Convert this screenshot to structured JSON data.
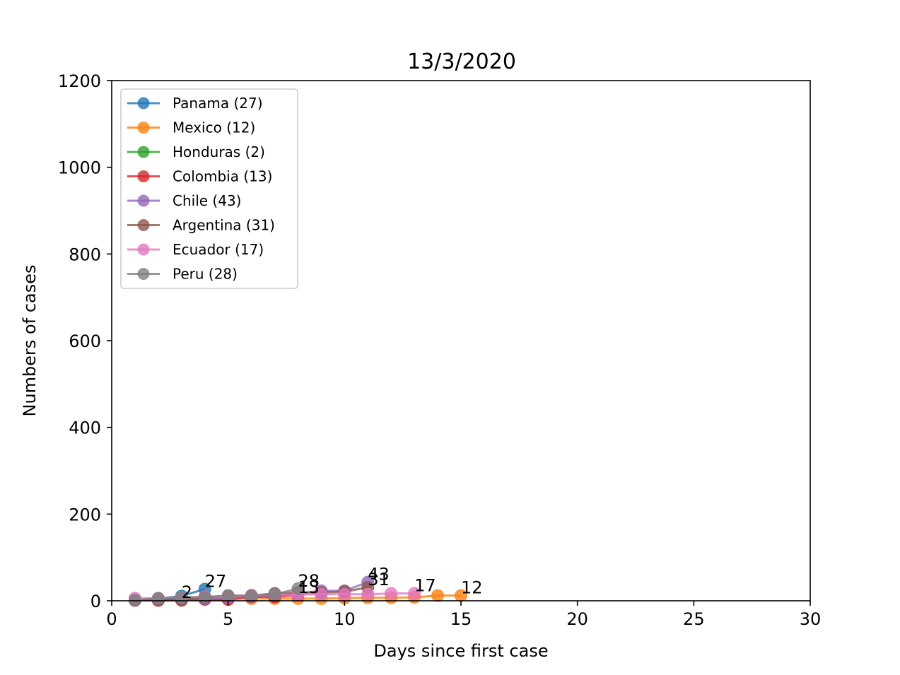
{
  "chart_data": {
    "type": "line",
    "title": "13/3/2020",
    "xlabel": "Days since first case",
    "ylabel": "Numbers of cases",
    "xlim": [
      0,
      30
    ],
    "ylim": [
      0,
      1200
    ],
    "xticks": [
      0,
      5,
      10,
      15,
      20,
      25,
      30
    ],
    "yticks": [
      0,
      200,
      400,
      600,
      800,
      1000,
      1200
    ],
    "legend_position": "upper-left",
    "grid": false,
    "series": [
      {
        "name": "Panama (27)",
        "color": "#1f77b4",
        "x": [
          1,
          2,
          3,
          4
        ],
        "y": [
          1,
          5,
          11,
          27
        ],
        "end_label": "27"
      },
      {
        "name": "Mexico (12)",
        "color": "#ff7f0e",
        "x": [
          1,
          2,
          3,
          4,
          5,
          6,
          7,
          8,
          9,
          10,
          11,
          12,
          13,
          14,
          15
        ],
        "y": [
          1,
          2,
          3,
          4,
          4,
          5,
          5,
          5,
          5,
          6,
          7,
          7,
          8,
          12,
          12
        ],
        "end_label": "12"
      },
      {
        "name": "Honduras (2)",
        "color": "#2ca02c",
        "x": [
          1,
          2,
          3
        ],
        "y": [
          1,
          2,
          2
        ],
        "end_label": "2"
      },
      {
        "name": "Colombia (13)",
        "color": "#d62728",
        "x": [
          1,
          2,
          3,
          4,
          5,
          6,
          7,
          8
        ],
        "y": [
          1,
          1,
          1,
          3,
          3,
          9,
          9,
          13
        ],
        "end_label": "13"
      },
      {
        "name": "Chile (43)",
        "color": "#9467bd",
        "x": [
          1,
          2,
          3,
          4,
          5,
          6,
          7,
          8,
          9,
          10,
          11
        ],
        "y": [
          1,
          3,
          4,
          5,
          7,
          10,
          13,
          17,
          23,
          23,
          43
        ],
        "end_label": "43"
      },
      {
        "name": "Argentina (31)",
        "color": "#8c564b",
        "x": [
          1,
          2,
          3,
          4,
          5,
          6,
          7,
          8,
          9,
          10,
          11
        ],
        "y": [
          1,
          1,
          2,
          8,
          12,
          12,
          17,
          19,
          19,
          21,
          31
        ],
        "end_label": "31"
      },
      {
        "name": "Ecuador (17)",
        "color": "#e377c2",
        "x": [
          1,
          2,
          3,
          4,
          5,
          6,
          7,
          8,
          9,
          10,
          11,
          12,
          13
        ],
        "y": [
          6,
          6,
          7,
          10,
          10,
          13,
          14,
          14,
          15,
          15,
          15,
          17,
          17
        ],
        "end_label": "17"
      },
      {
        "name": "Peru (28)",
        "color": "#7f7f7f",
        "x": [
          1,
          2,
          3,
          4,
          5,
          6,
          7,
          8
        ],
        "y": [
          1,
          6,
          7,
          9,
          11,
          11,
          15,
          28
        ],
        "end_label": "28"
      }
    ]
  }
}
